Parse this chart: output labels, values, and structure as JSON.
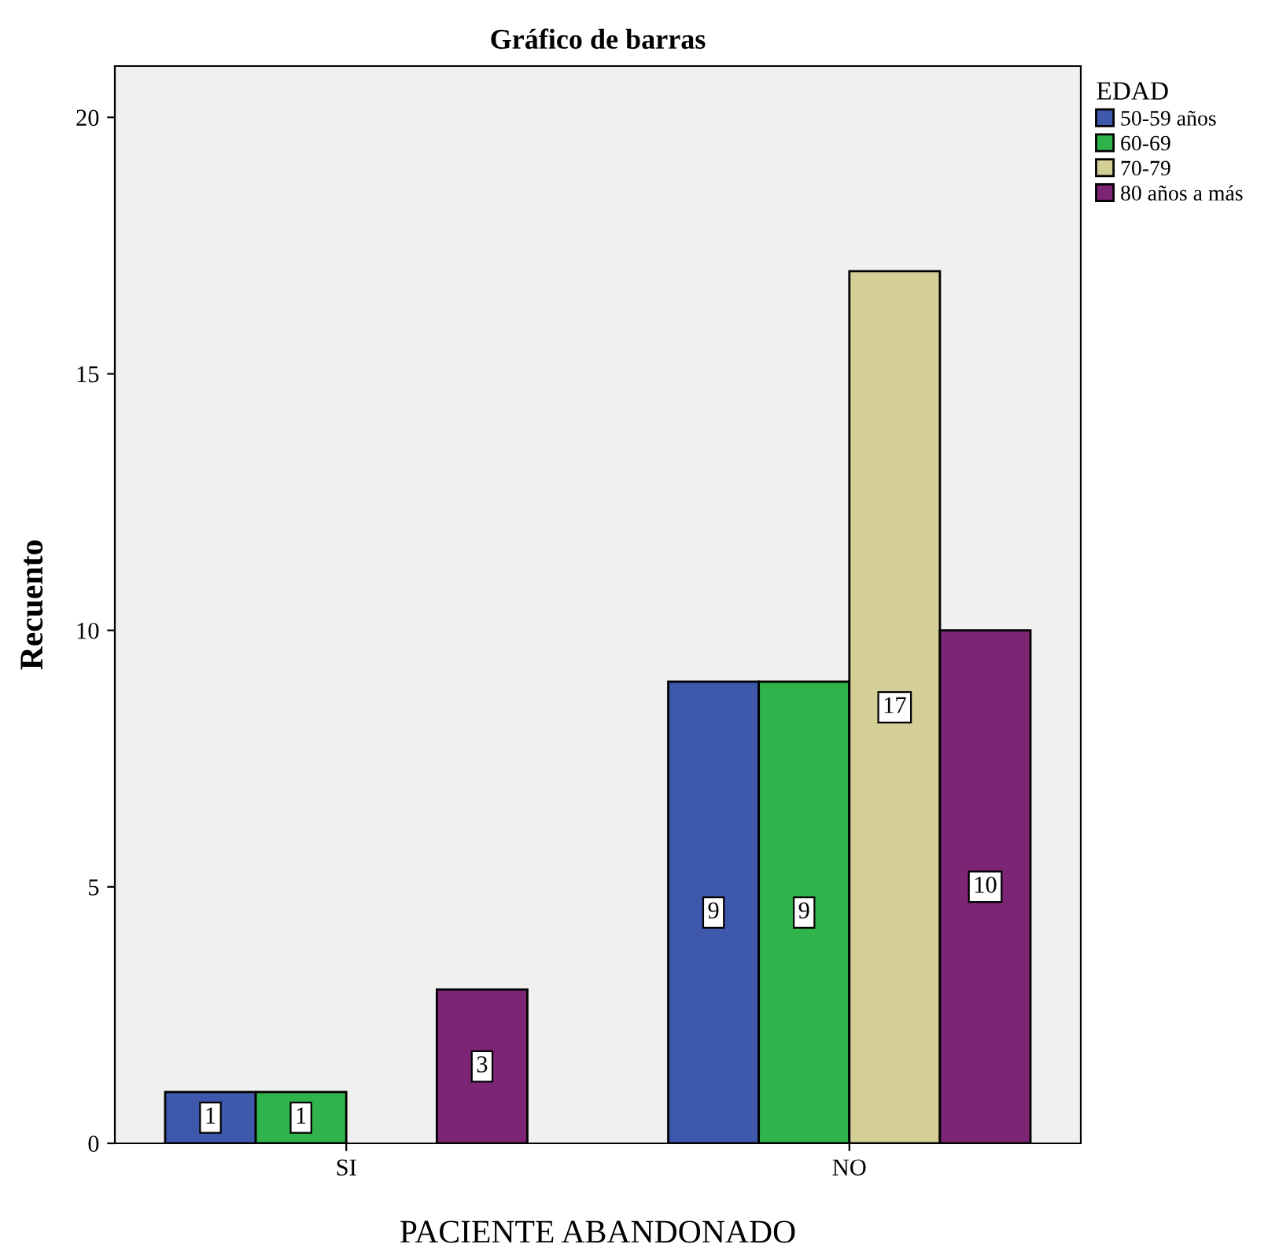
{
  "chart_data": {
    "type": "bar",
    "title": "Gráfico de barras",
    "xlabel": "PACIENTE ABANDONADO",
    "ylabel": "Recuento",
    "legend_title": "EDAD",
    "categories": [
      "SI",
      "NO"
    ],
    "series": [
      {
        "name": "50-59 años",
        "color": "#3e58ac",
        "values": [
          1,
          9
        ]
      },
      {
        "name": "60-69",
        "color": "#2fb34a",
        "values": [
          1,
          9
        ]
      },
      {
        "name": "70-79",
        "color": "#d4ce97",
        "values": [
          null,
          17
        ]
      },
      {
        "name": "80 años a más",
        "color": "#7b2574",
        "values": [
          3,
          10
        ]
      }
    ],
    "ylim": [
      0,
      21
    ],
    "yticks": [
      0,
      5,
      10,
      15,
      20
    ],
    "data_labels": true,
    "legend": "top right",
    "grid": false
  }
}
